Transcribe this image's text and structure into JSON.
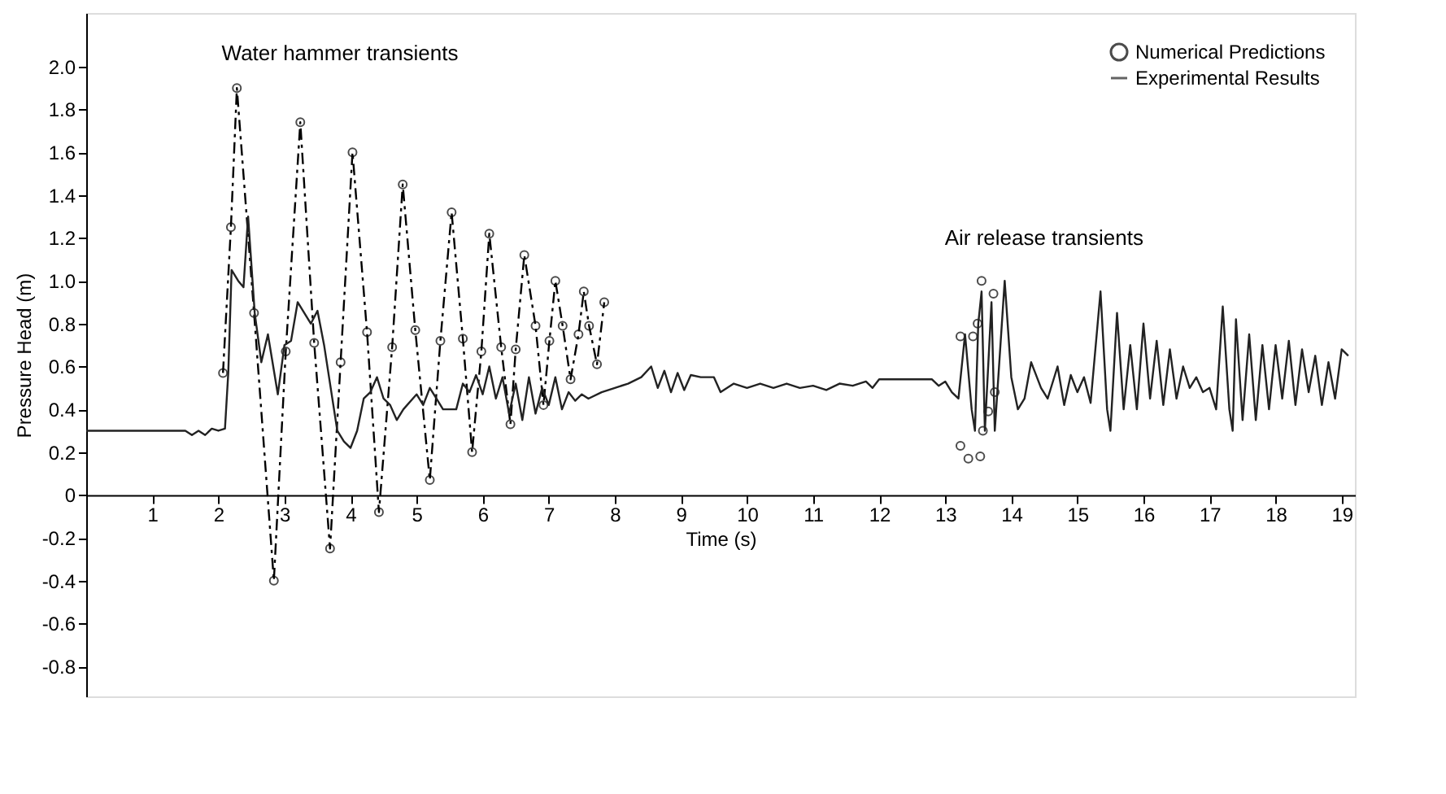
{
  "chart_data": {
    "type": "line",
    "xlabel": "Time (s)",
    "ylabel": "Pressure Head (m)",
    "xlim": [
      0,
      19.2
    ],
    "ylim": [
      -0.94,
      2.25
    ],
    "xticks": [
      1,
      2,
      3,
      4,
      5,
      6,
      7,
      8,
      9,
      10,
      11,
      12,
      13,
      14,
      15,
      16,
      17,
      18,
      19
    ],
    "yticks": [
      -0.8,
      -0.6,
      -0.4,
      -0.2,
      0,
      0.2,
      0.4,
      0.6,
      0.8,
      {
        "value": 1,
        "label": "1.0"
      },
      1.2,
      1.4,
      1.6,
      1.8,
      {
        "value": 2,
        "label": "2.0"
      }
    ],
    "grid": false,
    "legend": "top right",
    "annotations": [
      "Water hammer transients",
      "Air release transients"
    ],
    "series": [
      {
        "name": "Numerical Predictions",
        "color": "#000000",
        "marker": "circle",
        "line_style": "dashed",
        "x": [
          2.07,
          2.19,
          2.28,
          2.54,
          2.84,
          3.02,
          3.24,
          3.45,
          3.69,
          3.85,
          4.03,
          4.25,
          4.43,
          4.63,
          4.79,
          4.98,
          5.2,
          5.36,
          5.53,
          5.7,
          5.84,
          5.98,
          6.1,
          6.28,
          6.42,
          6.5,
          6.63,
          6.8,
          6.92,
          7.01,
          7.1,
          7.21,
          7.33,
          7.45,
          7.53,
          7.61,
          7.73,
          7.84
        ],
        "values": [
          0.57,
          1.25,
          1.9,
          0.85,
          -0.4,
          0.67,
          1.74,
          0.71,
          -0.25,
          0.62,
          1.6,
          0.76,
          -0.08,
          0.69,
          1.45,
          0.77,
          0.07,
          0.72,
          1.32,
          0.73,
          0.2,
          0.67,
          1.22,
          0.69,
          0.33,
          0.68,
          1.12,
          0.79,
          0.42,
          0.72,
          1.0,
          0.79,
          0.54,
          0.75,
          0.95,
          0.79,
          0.61,
          0.9
        ]
      },
      {
        "color": "#000000",
        "type": "scatter",
        "marker": "circle",
        "x": [
          13.23,
          13.42,
          13.49,
          13.55,
          13.73,
          13.75,
          13.65,
          13.57,
          13.23,
          13.35,
          13.53
        ],
        "values": [
          0.74,
          0.74,
          0.8,
          1.0,
          0.94,
          0.48,
          0.39,
          0.3,
          0.23,
          0.17,
          0.18
        ]
      },
      {
        "name": "Experimental Results",
        "color": "#222222",
        "marker": "none",
        "line_style": "solid",
        "x": [
          0,
          1.5,
          1.6,
          1.7,
          1.8,
          1.9,
          2.0,
          2.1,
          2.15,
          2.2,
          2.3,
          2.38,
          2.45,
          2.55,
          2.65,
          2.75,
          2.9,
          3.0,
          3.1,
          3.2,
          3.3,
          3.4,
          3.5,
          3.6,
          3.7,
          3.8,
          3.9,
          4.0,
          4.1,
          4.2,
          4.3,
          4.4,
          4.5,
          4.6,
          4.7,
          4.8,
          5.0,
          5.1,
          5.2,
          5.3,
          5.4,
          5.6,
          5.7,
          5.8,
          5.9,
          6.0,
          6.1,
          6.2,
          6.3,
          6.4,
          6.5,
          6.6,
          6.7,
          6.8,
          6.9,
          7.0,
          7.1,
          7.2,
          7.3,
          7.4,
          7.5,
          7.6,
          7.8,
          8.0,
          8.2,
          8.4,
          8.55,
          8.65,
          8.75,
          8.85,
          8.95,
          9.05,
          9.15,
          9.3,
          9.5,
          9.6,
          9.8,
          10.0,
          10.2,
          10.4,
          10.6,
          10.8,
          11.0,
          11.2,
          11.4,
          11.6,
          11.8,
          11.9,
          12.0,
          12.5,
          12.8,
          12.9,
          13.0,
          13.1,
          13.2,
          13.3,
          13.4,
          13.45,
          13.5,
          13.55,
          13.6,
          13.7,
          13.75,
          13.9,
          14.0,
          14.1,
          14.2,
          14.3,
          14.45,
          14.55,
          14.7,
          14.8,
          14.9,
          15.0,
          15.1,
          15.2,
          15.35,
          15.45,
          15.5,
          15.6,
          15.7,
          15.8,
          15.9,
          16.0,
          16.1,
          16.2,
          16.3,
          16.4,
          16.5,
          16.6,
          16.7,
          16.8,
          16.9,
          17.0,
          17.1,
          17.2,
          17.3,
          17.35,
          17.4,
          17.5,
          17.6,
          17.7,
          17.8,
          17.9,
          18.0,
          18.1,
          18.2,
          18.3,
          18.4,
          18.5,
          18.6,
          18.7,
          18.8,
          18.9,
          19.0,
          19.1
        ],
        "values": [
          0.3,
          0.3,
          0.28,
          0.3,
          0.28,
          0.31,
          0.3,
          0.31,
          0.57,
          1.05,
          1.0,
          0.97,
          1.3,
          0.85,
          0.62,
          0.75,
          0.47,
          0.7,
          0.72,
          0.9,
          0.85,
          0.8,
          0.86,
          0.7,
          0.5,
          0.3,
          0.25,
          0.22,
          0.3,
          0.45,
          0.48,
          0.55,
          0.45,
          0.42,
          0.35,
          0.4,
          0.47,
          0.42,
          0.5,
          0.45,
          0.4,
          0.4,
          0.52,
          0.48,
          0.56,
          0.47,
          0.6,
          0.45,
          0.55,
          0.38,
          0.52,
          0.35,
          0.55,
          0.38,
          0.5,
          0.42,
          0.55,
          0.4,
          0.48,
          0.44,
          0.47,
          0.45,
          0.48,
          0.5,
          0.52,
          0.55,
          0.6,
          0.5,
          0.58,
          0.48,
          0.57,
          0.49,
          0.56,
          0.55,
          0.55,
          0.48,
          0.52,
          0.5,
          0.52,
          0.5,
          0.52,
          0.5,
          0.51,
          0.49,
          0.52,
          0.51,
          0.53,
          0.5,
          0.54,
          0.54,
          0.54,
          0.51,
          0.53,
          0.48,
          0.45,
          0.75,
          0.4,
          0.3,
          0.8,
          0.95,
          0.3,
          0.9,
          0.3,
          1.0,
          0.55,
          0.4,
          0.45,
          0.62,
          0.5,
          0.45,
          0.6,
          0.42,
          0.56,
          0.48,
          0.55,
          0.43,
          0.95,
          0.4,
          0.3,
          0.85,
          0.4,
          0.7,
          0.4,
          0.8,
          0.45,
          0.72,
          0.42,
          0.68,
          0.45,
          0.6,
          0.5,
          0.55,
          0.48,
          0.5,
          0.4,
          0.88,
          0.4,
          0.3,
          0.82,
          0.35,
          0.75,
          0.35,
          0.7,
          0.4,
          0.7,
          0.45,
          0.72,
          0.42,
          0.68,
          0.48,
          0.65,
          0.42,
          0.62,
          0.45,
          0.68,
          0.65
        ]
      }
    ]
  }
}
